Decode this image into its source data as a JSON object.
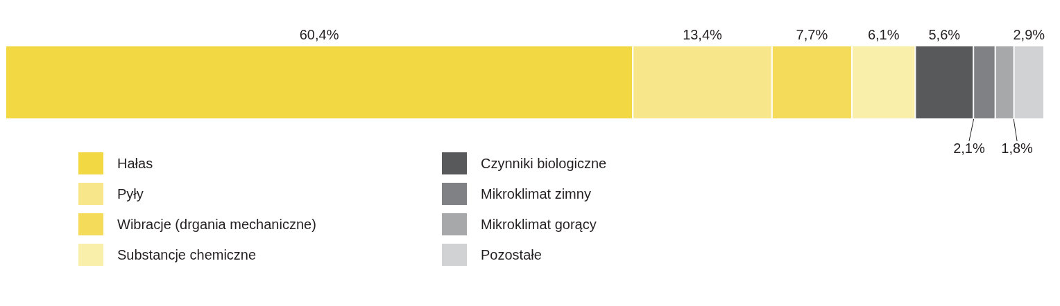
{
  "chart_data": {
    "type": "bar",
    "orientation": "horizontal",
    "stacked": true,
    "categories": [
      null
    ],
    "xlim": [
      0,
      100
    ],
    "tick_labels": false,
    "legend": "bottom",
    "series": [
      {
        "name": "Hałas",
        "color": "#f2d943",
        "values": [
          60.4
        ],
        "value_labels": [
          "60,4%"
        ]
      },
      {
        "name": "Pyły",
        "color": "#f8e78a",
        "values": [
          13.4
        ],
        "value_labels": [
          "13,4%"
        ]
      },
      {
        "name": "Wibracje (drgania mechaniczne)",
        "color": "#f4dc5a",
        "values": [
          7.7
        ],
        "value_labels": [
          "7,7%"
        ]
      },
      {
        "name": "Substancje chemiczne",
        "color": "#f9efab",
        "values": [
          6.1
        ],
        "value_labels": [
          "6,1%"
        ]
      },
      {
        "name": "Czynniki biologiczne",
        "color": "#58595b",
        "values": [
          5.6
        ],
        "value_labels": [
          "5,6%"
        ]
      },
      {
        "name": "Mikroklimat zimny",
        "color": "#808184",
        "values": [
          2.1
        ],
        "value_labels": [
          "2,1%"
        ]
      },
      {
        "name": "Mikroklimat gorący",
        "color": "#a7a8aa",
        "values": [
          1.8
        ],
        "value_labels": [
          "1,8%"
        ]
      },
      {
        "name": "Pozostałe",
        "color": "#d1d2d4",
        "values": [
          2.9
        ],
        "value_labels": [
          "2,9%"
        ]
      }
    ]
  }
}
